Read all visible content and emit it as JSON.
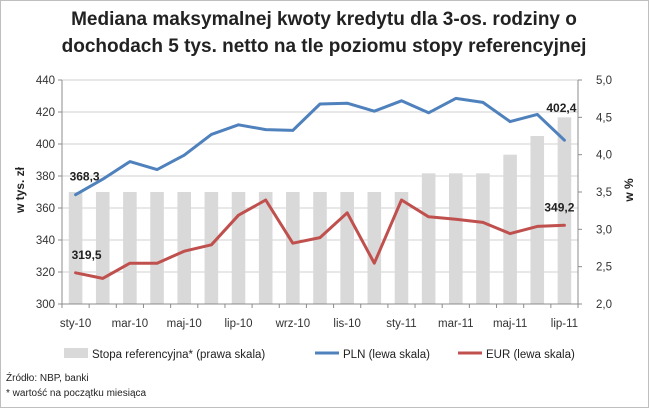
{
  "chart_data": {
    "type": "bar+line",
    "title_line1": "Mediana maksymalnej kwoty kredytu dla 3-os. rodziny o",
    "title_line2": "dochodach 5 tys. netto na tle poziomu stopy referencyjnej",
    "ylabel_left": "w tys. zł",
    "ylabel_right": "w %",
    "ylim_left": [
      300,
      440
    ],
    "ylim_right": [
      2.0,
      5.0
    ],
    "yticks_left": [
      "300",
      "320",
      "340",
      "360",
      "380",
      "400",
      "420",
      "440"
    ],
    "yticks_right": [
      "2,0",
      "2,5",
      "3,0",
      "3,5",
      "4,0",
      "4,5",
      "5,0"
    ],
    "x_tick_labels": [
      "sty-10",
      "mar-10",
      "maj-10",
      "lip-10",
      "wrz-10",
      "lis-10",
      "sty-11",
      "mar-11",
      "maj-11",
      "lip-11"
    ],
    "categories": [
      "sty-10",
      "lut-10",
      "mar-10",
      "kwi-10",
      "maj-10",
      "cze-10",
      "lip-10",
      "sie-10",
      "wrz-10",
      "paź-10",
      "lis-10",
      "gru-10",
      "sty-11",
      "lut-11",
      "mar-11",
      "kwi-11",
      "maj-11",
      "cze-11",
      "lip-11"
    ],
    "series": [
      {
        "name": "Stopa referencyjna* (prawa skala)",
        "type": "bar",
        "axis": "right",
        "color": "#d9d9d9",
        "values": [
          3.5,
          3.5,
          3.5,
          3.5,
          3.5,
          3.5,
          3.5,
          3.5,
          3.5,
          3.5,
          3.5,
          3.5,
          3.5,
          3.75,
          3.75,
          3.75,
          4.0,
          4.25,
          4.5
        ]
      },
      {
        "name": "PLN (lewa skala)",
        "type": "line",
        "axis": "left",
        "color": "#4f81bd",
        "values": [
          368.3,
          378,
          389,
          384,
          393,
          406,
          412,
          409,
          408.5,
          425,
          425.5,
          420.5,
          427,
          419.5,
          428.5,
          426,
          414,
          418.5,
          402.4
        ]
      },
      {
        "name": "EUR  (lewa skala)",
        "type": "line",
        "axis": "left",
        "color": "#c0504d",
        "values": [
          319.5,
          316,
          325.5,
          325.5,
          333,
          337,
          355.5,
          365,
          338,
          341.5,
          357,
          325.5,
          365,
          354.5,
          353,
          351,
          344,
          348.5,
          349.2
        ]
      }
    ],
    "data_labels": {
      "pln_first": "368,3",
      "pln_last": "402,4",
      "eur_first": "319,5",
      "eur_last": "349,2"
    },
    "legend_position": "bottom",
    "grid": "horizontal",
    "source_line1": "Źródło: NBP, banki",
    "source_line2": "* wartość na początku miesiąca"
  }
}
